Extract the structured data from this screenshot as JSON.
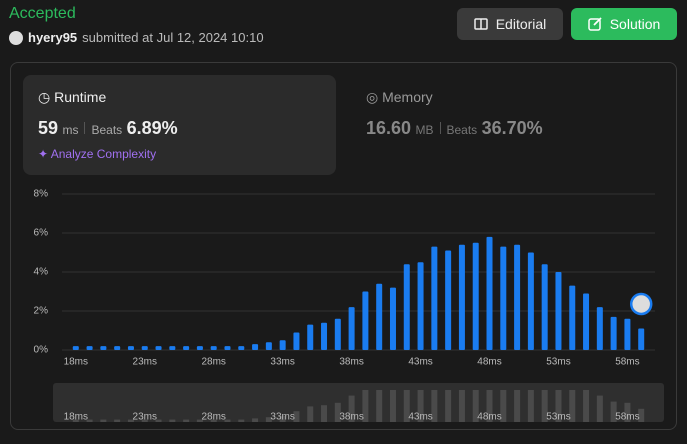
{
  "header": {
    "status": "Accepted",
    "user": "hyery95",
    "submitted": "submitted at Jul 12, 2024 10:10",
    "buttons": [
      "Editorial",
      "Solution"
    ]
  },
  "runtime": {
    "title": "Runtime",
    "value": "59",
    "unit": "ms",
    "beats_label": "Beats",
    "beats": "6.89%",
    "analyze": "Analyze Complexity"
  },
  "memory": {
    "title": "Memory",
    "value": "16.60",
    "unit": "MB",
    "beats_label": "Beats",
    "beats": "36.70%"
  },
  "chart_data": {
    "type": "bar",
    "color": "#1a7cf0",
    "grid": true,
    "x": [
      18,
      19,
      20,
      21,
      22,
      23,
      24,
      25,
      26,
      27,
      28,
      29,
      30,
      31,
      32,
      33,
      34,
      35,
      36,
      37,
      38,
      39,
      40,
      41,
      42,
      43,
      44,
      45,
      46,
      47,
      48,
      49,
      50,
      51,
      52,
      53,
      54,
      55,
      56,
      57,
      58,
      59
    ],
    "values": [
      0.2,
      0.2,
      0.2,
      0.2,
      0.2,
      0.2,
      0.2,
      0.2,
      0.2,
      0.2,
      0.2,
      0.2,
      0.2,
      0.3,
      0.4,
      0.5,
      0.9,
      1.3,
      1.4,
      1.6,
      2.2,
      3.0,
      3.4,
      3.2,
      4.4,
      4.5,
      5.3,
      5.1,
      5.4,
      5.5,
      5.8,
      5.3,
      5.4,
      5.0,
      4.4,
      4.0,
      3.3,
      2.9,
      2.2,
      1.7,
      1.6,
      1.1
    ],
    "xlim": [
      17,
      60
    ],
    "xticks": [
      {
        "value": 18,
        "label": "18ms"
      },
      {
        "value": 23,
        "label": "23ms"
      },
      {
        "value": 28,
        "label": "28ms"
      },
      {
        "value": 33,
        "label": "33ms"
      },
      {
        "value": 38,
        "label": "38ms"
      },
      {
        "value": 43,
        "label": "43ms"
      },
      {
        "value": 48,
        "label": "48ms"
      },
      {
        "value": 53,
        "label": "53ms"
      },
      {
        "value": 58,
        "label": "58ms"
      }
    ],
    "ylim": [
      0,
      8
    ],
    "yticks": [
      {
        "value": 0,
        "label": "0%"
      },
      {
        "value": 2,
        "label": "2%"
      },
      {
        "value": 4,
        "label": "4%"
      },
      {
        "value": 6,
        "label": "6%"
      },
      {
        "value": 8,
        "label": "8%"
      }
    ]
  }
}
